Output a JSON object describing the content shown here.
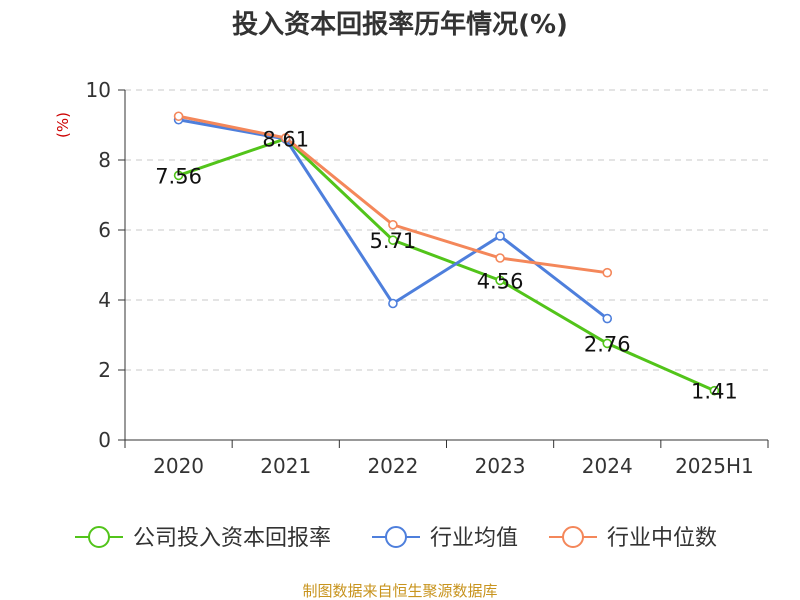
{
  "chart_data": {
    "type": "line",
    "title": "投入资本回报率历年情况(%)",
    "xlabel": "",
    "ylabel": "(%)",
    "categories": [
      "2020",
      "2021",
      "2022",
      "2023",
      "2024",
      "2025H1"
    ],
    "ylim": [
      0,
      10
    ],
    "yticks": [
      0,
      2,
      4,
      6,
      8,
      10
    ],
    "grid": "horizontal-dashed",
    "legend_position": "bottom",
    "series": [
      {
        "name": "公司投入资本回报率",
        "color": "#52c41a",
        "values": [
          7.56,
          8.61,
          5.71,
          4.56,
          2.76,
          1.41
        ],
        "labels": [
          "7.56",
          "8.61",
          "5.71",
          "4.56",
          "2.76",
          "1.41"
        ]
      },
      {
        "name": "行业均值",
        "color": "#4e7fdc",
        "values": [
          9.15,
          8.6,
          3.9,
          5.83,
          3.47,
          null
        ]
      },
      {
        "name": "行业中位数",
        "color": "#f4875a",
        "values": [
          9.25,
          8.63,
          6.15,
          5.2,
          4.78,
          null
        ]
      }
    ]
  },
  "source": "制图数据来自恒生聚源数据库"
}
